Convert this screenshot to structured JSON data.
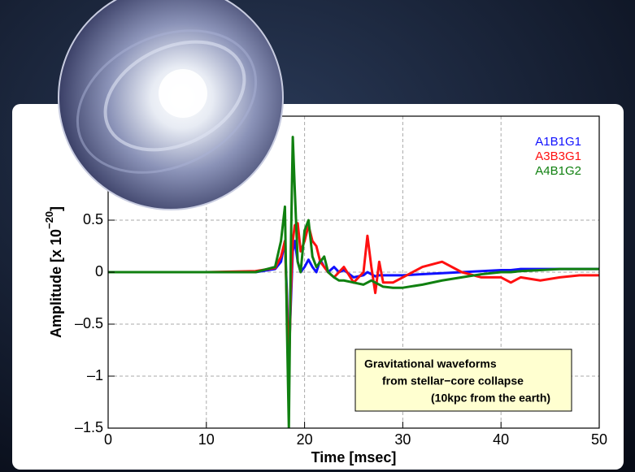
{
  "chart_data": {
    "type": "line",
    "x_label": "Time  [msec]",
    "y_label": "Amplitude  [x 10",
    "y_label_exponent": "−20",
    "y_label_end": "]",
    "annotation": [
      "Gravitational waveforms",
      "from stellar−core collapse",
      "(10kpc from the earth)"
    ],
    "x": [
      0,
      10,
      15,
      17,
      17.6,
      18,
      18.2,
      18.4,
      18.6,
      18.8,
      19,
      19.3,
      19.6,
      20,
      20.4,
      20.8,
      21.2,
      21.6,
      22,
      22.4,
      23,
      23.5,
      24,
      25,
      26,
      26.4,
      26.8,
      27.2,
      27.6,
      28,
      29,
      30,
      32,
      34,
      36,
      38,
      40,
      41,
      42,
      44,
      46,
      48,
      50
    ],
    "series": [
      {
        "name": "A1B1G1",
        "color": "#1010ff",
        "values": [
          0,
          0,
          0,
          0.03,
          0.1,
          0.3,
          -0.2,
          -0.85,
          -0.3,
          0.2,
          0.3,
          0.1,
          0,
          0.05,
          0.12,
          0.05,
          0,
          0.12,
          0.05,
          0,
          0.05,
          0,
          0.02,
          -0.05,
          -0.03,
          0,
          -0.02,
          -0.04,
          -0.03,
          -0.03,
          -0.03,
          -0.03,
          -0.02,
          -0.01,
          0,
          0.01,
          0.02,
          0.02,
          0.03,
          0.03,
          0.03,
          0.03,
          0.03
        ]
      },
      {
        "name": "A3B3G1",
        "color": "#ff1010",
        "values": [
          0,
          0,
          0.01,
          0.04,
          0.15,
          0.3,
          -0.3,
          -1.0,
          -0.2,
          0.3,
          0.45,
          0.47,
          0.2,
          0.3,
          0.45,
          0.3,
          0.25,
          0.1,
          0.05,
          0,
          -0.05,
          0,
          0.05,
          -0.1,
          0,
          0.35,
          0.05,
          -0.2,
          0.1,
          -0.1,
          -0.1,
          -0.05,
          0.05,
          0.1,
          0,
          -0.05,
          -0.05,
          -0.1,
          -0.05,
          -0.08,
          -0.05,
          -0.03,
          -0.03
        ]
      },
      {
        "name": "A4B1G2",
        "color": "#108010",
        "values": [
          0,
          0,
          0,
          0.05,
          0.3,
          0.63,
          -0.5,
          -1.5,
          0.2,
          1.3,
          0.8,
          0.1,
          0,
          0.4,
          0.5,
          0.15,
          0.05,
          0.1,
          0.15,
          0,
          -0.05,
          -0.08,
          -0.08,
          -0.1,
          -0.12,
          -0.1,
          -0.08,
          -0.1,
          -0.12,
          -0.14,
          -0.15,
          -0.15,
          -0.12,
          -0.08,
          -0.05,
          -0.02,
          0,
          0,
          0.01,
          0.02,
          0.03,
          0.03,
          0.03
        ]
      }
    ],
    "xlim": [
      0,
      50
    ],
    "ylim": [
      -1.5,
      1.5
    ],
    "xticks": [
      0,
      10,
      20,
      30,
      40,
      50
    ],
    "yticks": [
      {
        "value": -1.5,
        "label": "–1.5"
      },
      {
        "value": -1,
        "label": "–1"
      },
      {
        "value": -0.5,
        "label": "–0.5"
      },
      0,
      0.5
    ],
    "grid": true
  }
}
